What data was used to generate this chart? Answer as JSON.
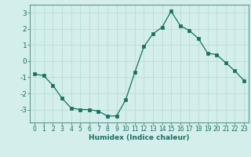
{
  "x": [
    0,
    1,
    2,
    3,
    4,
    5,
    6,
    7,
    8,
    9,
    10,
    11,
    12,
    13,
    14,
    15,
    16,
    17,
    18,
    19,
    20,
    21,
    22,
    23
  ],
  "y": [
    -0.8,
    -0.9,
    -1.5,
    -2.3,
    -2.9,
    -3.0,
    -3.0,
    -3.1,
    -3.4,
    -3.4,
    -2.4,
    -0.7,
    0.9,
    1.7,
    2.1,
    3.1,
    2.2,
    1.9,
    1.4,
    0.5,
    0.4,
    -0.1,
    -0.6,
    -1.2
  ],
  "xlabel": "Humidex (Indice chaleur)",
  "ylim": [
    -3.8,
    3.5
  ],
  "xlim": [
    -0.5,
    23.5
  ],
  "line_color": "#1a7060",
  "marker_color": "#1a7060",
  "bg_color": "#d4eeeb",
  "grid_color": "#b8ddd9",
  "tick_label_color": "#1a7060",
  "xlabel_color": "#1a7060",
  "yticks": [
    -3,
    -2,
    -1,
    0,
    1,
    2,
    3
  ],
  "xticks": [
    0,
    1,
    2,
    3,
    4,
    5,
    6,
    7,
    8,
    9,
    10,
    11,
    12,
    13,
    14,
    15,
    16,
    17,
    18,
    19,
    20,
    21,
    22,
    23
  ],
  "spine_color": "#5a9a90"
}
